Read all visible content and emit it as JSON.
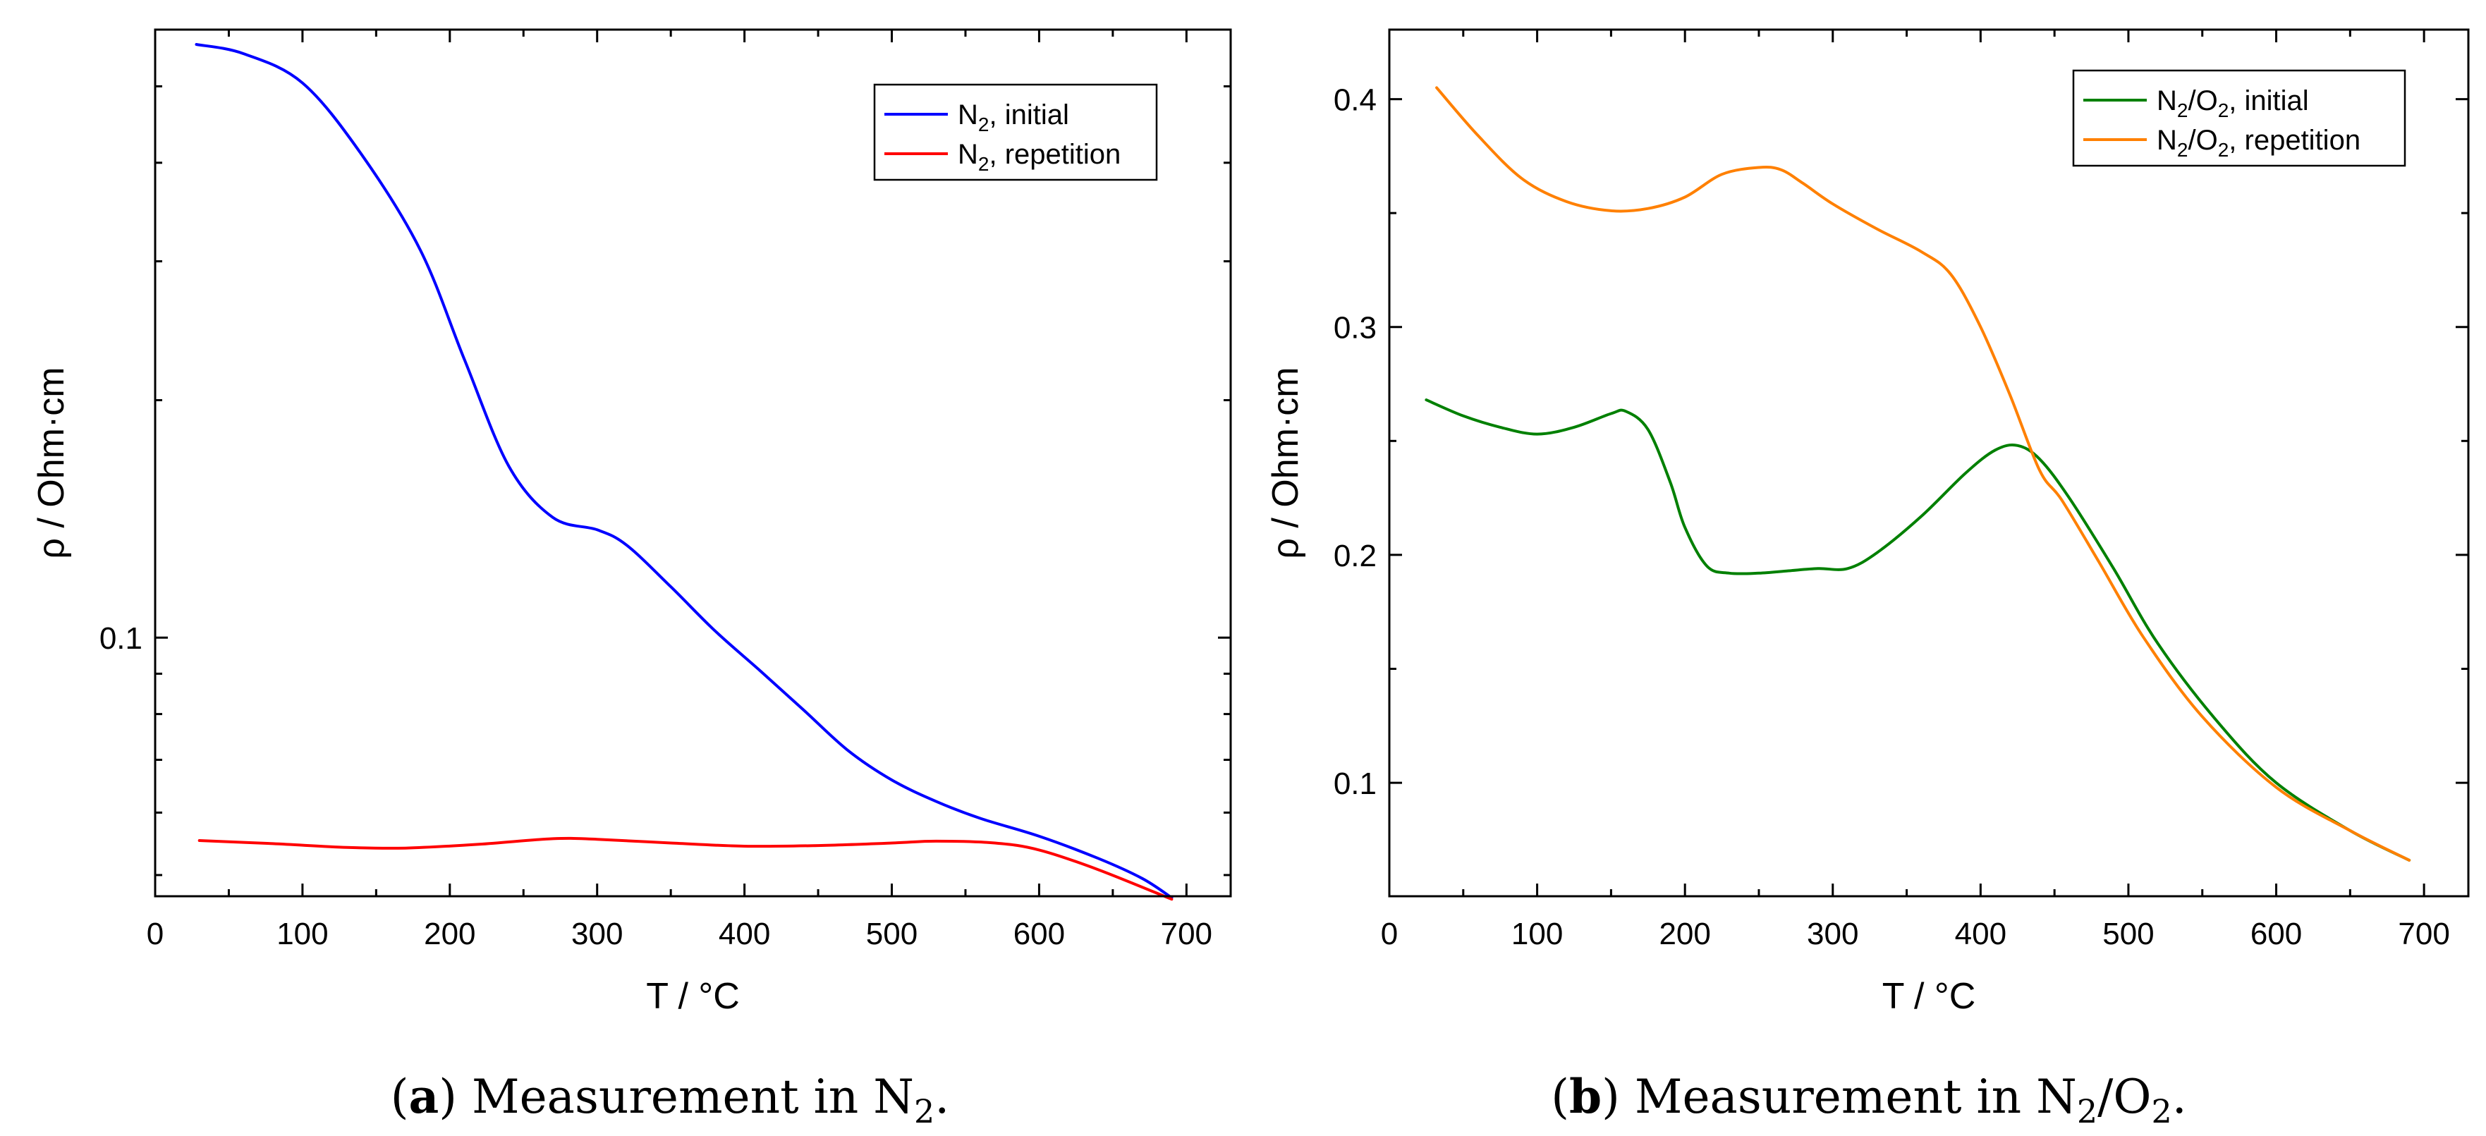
{
  "chart_data": [
    {
      "type": "line",
      "scale": "log",
      "xlabel": "T / °C",
      "ylabel": "ρ / Ohm·cm",
      "xlim": [
        0,
        730
      ],
      "ylim": [
        0.047,
        0.59
      ],
      "xticks": [
        "0",
        "100",
        "200",
        "300",
        "400",
        "500",
        "600",
        "700"
      ],
      "yticks": [
        "0.1"
      ],
      "legend_position": "top-right",
      "caption": {
        "label": "a",
        "text": ") Measurement in N",
        "sub": "2",
        "end": "."
      },
      "series": [
        {
          "name": "N2, initial",
          "legend_main": "N",
          "legend_sub": "2",
          "legend_rest": ", initial",
          "color": "#0000ff",
          "x": [
            28,
            60,
            100,
            140,
            180,
            210,
            240,
            270,
            300,
            320,
            350,
            380,
            410,
            440,
            470,
            500,
            530,
            560,
            600,
            640,
            670,
            690
          ],
          "y": [
            0.565,
            0.55,
            0.505,
            0.41,
            0.31,
            0.225,
            0.165,
            0.142,
            0.137,
            0.131,
            0.116,
            0.102,
            0.091,
            0.081,
            0.072,
            0.066,
            0.062,
            0.059,
            0.056,
            0.0525,
            0.0495,
            0.0468
          ]
        },
        {
          "name": "N2, repetition",
          "legend_main": "N",
          "legend_sub": "2",
          "legend_rest": ", repetition",
          "color": "#ff0000",
          "x": [
            30,
            80,
            130,
            170,
            220,
            270,
            300,
            350,
            400,
            450,
            500,
            530,
            570,
            600,
            640,
            690
          ],
          "y": [
            0.0553,
            0.0548,
            0.0542,
            0.0541,
            0.0547,
            0.0556,
            0.0555,
            0.0549,
            0.0544,
            0.0545,
            0.0549,
            0.0552,
            0.0549,
            0.0538,
            0.0508,
            0.0466
          ]
        }
      ]
    },
    {
      "type": "line",
      "xlabel": "T / °C",
      "ylabel": "ρ / Ohm·cm",
      "xlim": [
        0,
        730
      ],
      "ylim": [
        0.0502,
        0.4305
      ],
      "xticks": [
        "0",
        "100",
        "200",
        "300",
        "400",
        "500",
        "600",
        "700"
      ],
      "yticks": [
        "0.1",
        "0.2",
        "0.3",
        "0.4"
      ],
      "legend_position": "top-right",
      "caption": {
        "label": "b",
        "text": ") Measurement in N",
        "sub": "2",
        "mid": "/O",
        "sub2": "2",
        "end": "."
      },
      "series": [
        {
          "name": "N2/O2, initial",
          "legend_main": "N",
          "legend_sub": "2",
          "legend_mid": "/O",
          "legend_sub2": "2",
          "legend_rest": ", initial",
          "color": "#008000",
          "x": [
            25,
            50,
            75,
            100,
            125,
            150,
            160,
            175,
            190,
            200,
            215,
            230,
            250,
            270,
            290,
            310,
            330,
            360,
            390,
            410,
            425,
            440,
            460,
            490,
            520,
            560,
            600,
            650,
            690
          ],
          "y": [
            0.268,
            0.261,
            0.256,
            0.253,
            0.256,
            0.262,
            0.263,
            0.255,
            0.232,
            0.212,
            0.195,
            0.192,
            0.192,
            0.193,
            0.194,
            0.194,
            0.201,
            0.217,
            0.236,
            0.246,
            0.248,
            0.242,
            0.225,
            0.194,
            0.161,
            0.127,
            0.1,
            0.079,
            0.066
          ]
        },
        {
          "name": "N2/O2, repetition",
          "legend_main": "N",
          "legend_sub": "2",
          "legend_mid": "/O",
          "legend_sub2": "2",
          "legend_rest": ", repetition",
          "color": "#ff8000",
          "x": [
            32,
            60,
            90,
            120,
            150,
            175,
            200,
            225,
            250,
            265,
            280,
            300,
            330,
            360,
            380,
            400,
            420,
            440,
            455,
            480,
            510,
            550,
            600,
            650,
            690
          ],
          "y": [
            0.405,
            0.384,
            0.365,
            0.355,
            0.351,
            0.352,
            0.357,
            0.367,
            0.37,
            0.369,
            0.363,
            0.354,
            0.343,
            0.333,
            0.323,
            0.3,
            0.27,
            0.237,
            0.224,
            0.197,
            0.164,
            0.129,
            0.098,
            0.079,
            0.066
          ]
        }
      ]
    }
  ]
}
